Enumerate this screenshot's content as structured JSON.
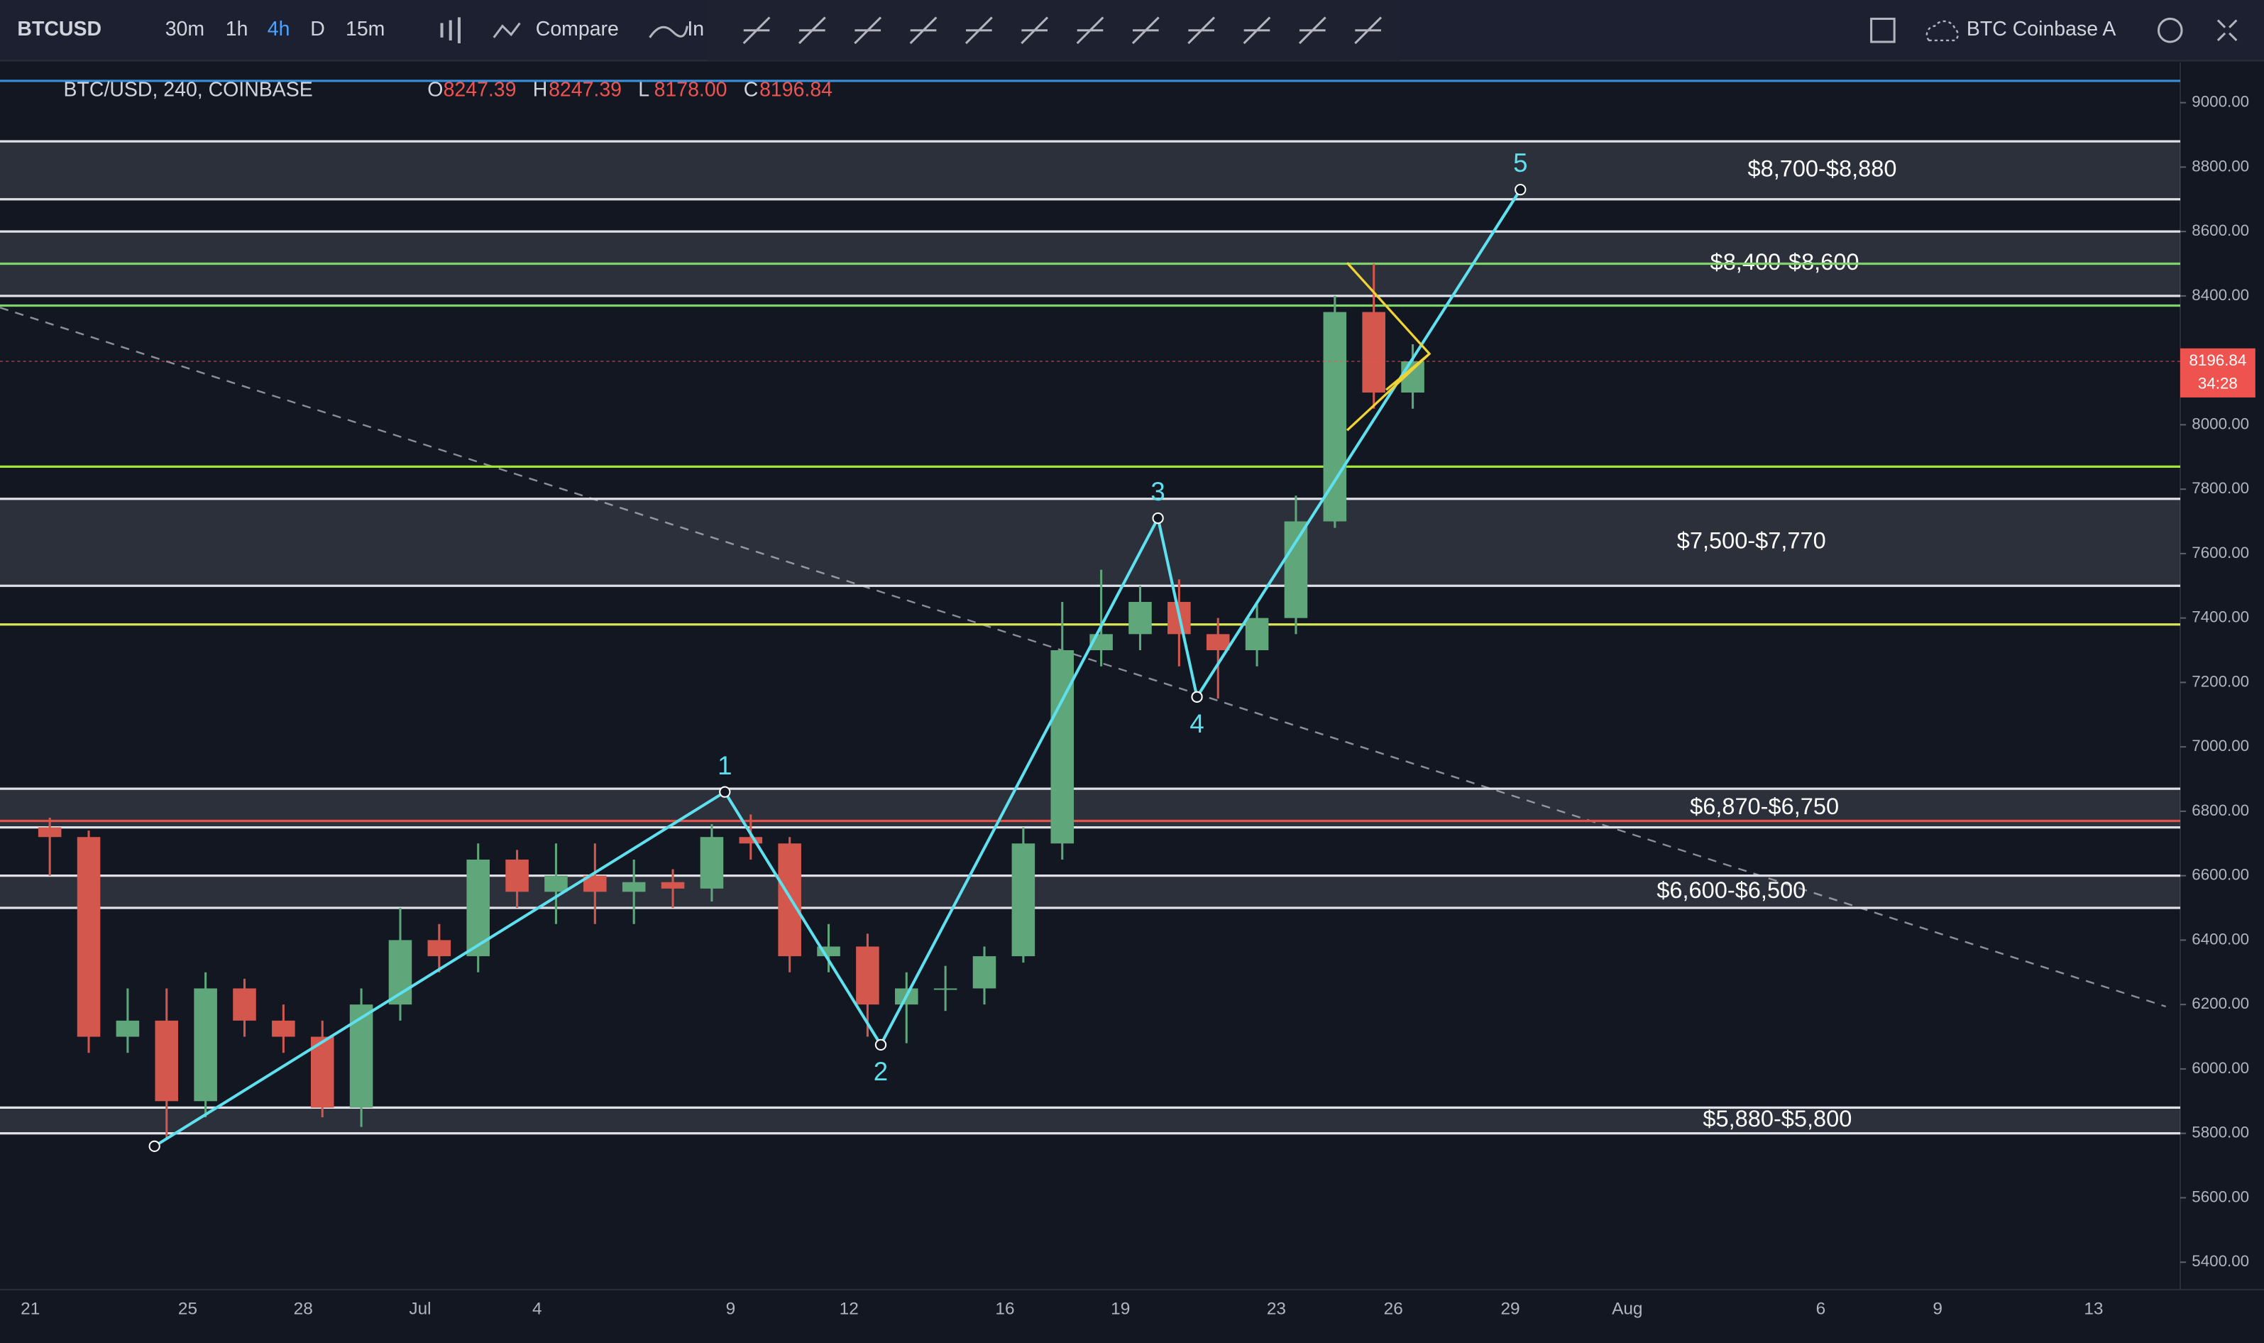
{
  "toolbar": {
    "symbol": "BTCUSD",
    "intervals": [
      "30m",
      "1h",
      "4h",
      "D",
      "15m"
    ],
    "compare": "Compare",
    "indicators": "In",
    "layout_name": "BTC Coinbase A"
  },
  "legend": {
    "title": "BTC/USD, 240, COINBASE",
    "fields": [
      {
        "key": "O",
        "value": "8247.39"
      },
      {
        "key": "H",
        "value": "8247.39"
      },
      {
        "key": "L",
        "value": "8178.00"
      },
      {
        "key": "C",
        "value": "8196.84"
      }
    ]
  },
  "chart_data": {
    "type": "candlestick",
    "x_labels": [
      "21",
      "25",
      "28",
      "Jul",
      "4",
      "9",
      "12",
      "16",
      "19",
      "23",
      "26",
      "29",
      "Aug",
      "6",
      "9",
      "13"
    ],
    "candles": {
      "open": [
        6750,
        6720,
        6100,
        6150,
        5900,
        6250,
        6150,
        6100,
        5880,
        6200,
        6400,
        6350,
        6650,
        6550,
        6600,
        6550,
        6580,
        6560,
        6720,
        6700,
        6350,
        6380,
        6200,
        6250,
        6250,
        6350,
        6700,
        7300,
        7350,
        7450,
        7350,
        7300,
        7400,
        7700,
        8350,
        8100
      ],
      "high": [
        6780,
        6740,
        6250,
        6250,
        6300,
        6280,
        6200,
        6150,
        6250,
        6500,
        6450,
        6700,
        6680,
        6700,
        6700,
        6650,
        6620,
        6760,
        6790,
        6720,
        6450,
        6420,
        6300,
        6320,
        6380,
        6750,
        7450,
        7550,
        7500,
        7520,
        7400,
        7450,
        7780,
        8400,
        8500,
        8250
      ],
      "low": [
        6600,
        6050,
        6050,
        5780,
        5850,
        6100,
        6050,
        5850,
        5820,
        6150,
        6300,
        6300,
        6500,
        6450,
        6450,
        6450,
        6500,
        6520,
        6650,
        6300,
        6300,
        6100,
        6080,
        6180,
        6200,
        6330,
        6650,
        7250,
        7300,
        7250,
        7150,
        7250,
        7350,
        7680,
        8050,
        8050
      ],
      "close": [
        6720,
        6100,
        6150,
        5900,
        6250,
        6150,
        6100,
        5880,
        6200,
        6400,
        6350,
        6650,
        6550,
        6600,
        6550,
        6580,
        6560,
        6720,
        6700,
        6350,
        6380,
        6200,
        6250,
        6250,
        6350,
        6700,
        7300,
        7350,
        7450,
        7350,
        7300,
        7400,
        7700,
        8350,
        8100,
        8197
      ]
    },
    "up_color": "#5fa77b",
    "down_color": "#d4574e",
    "zones": [
      {
        "label": "$8,700-$8,880",
        "low": 8700,
        "high": 8880
      },
      {
        "label": "$8,400-$8,600",
        "low": 8400,
        "high": 8600
      },
      {
        "label": "$7,500-$7,770",
        "low": 7500,
        "high": 7770
      },
      {
        "label": "$6,870-$6,750",
        "low": 6750,
        "high": 6870
      },
      {
        "label": "$6,600-$6,500",
        "low": 6500,
        "high": 6600
      },
      {
        "label": "$5,880-$5,800",
        "low": 5800,
        "high": 5880
      }
    ],
    "levels": [
      {
        "value": 8500,
        "color": "#7fd36b"
      },
      {
        "value": 8370,
        "color": "#7fd36b"
      },
      {
        "value": 7870,
        "color": "#a3e635"
      },
      {
        "value": 7380,
        "color": "#d9e85a"
      },
      {
        "value": 6770,
        "color": "#e0524a"
      }
    ],
    "wave": {
      "labels": [
        null,
        "1",
        "2",
        "3",
        "4",
        "5"
      ],
      "values": [
        5760,
        6860,
        6075,
        7710,
        7155,
        8730
      ],
      "color": "#5ee0ef"
    },
    "last_price": {
      "value": 8196.84,
      "label": "8196.84",
      "countdown": "34:28"
    },
    "ylim": [
      5315,
      9117
    ],
    "yticks": [
      {
        "value": 5400,
        "label": "5400.00"
      },
      {
        "value": 5600,
        "label": "5600.00"
      },
      {
        "value": 5800,
        "label": "5800.00"
      },
      {
        "value": 6000,
        "label": "6000.00"
      },
      {
        "value": 6200,
        "label": "6200.00"
      },
      {
        "value": 6400,
        "label": "6400.00"
      },
      {
        "value": 6600,
        "label": "6600.00"
      },
      {
        "value": 6800,
        "label": "6800.00"
      },
      {
        "value": 7000,
        "label": "7000.00"
      },
      {
        "value": 7200,
        "label": "7200.00"
      },
      {
        "value": 7400,
        "label": "7400.00"
      },
      {
        "value": 7600,
        "label": "7600.00"
      },
      {
        "value": 7800,
        "label": "7800.00"
      },
      {
        "value": 8000,
        "label": "8000.00"
      },
      {
        "value": 8200,
        "label": "8200.00"
      },
      {
        "value": 8400,
        "label": "8400.00"
      },
      {
        "value": 8600,
        "label": "8600.00"
      },
      {
        "value": 8800,
        "label": "8800.00"
      },
      {
        "value": 9000,
        "label": "9000.00"
      }
    ]
  }
}
